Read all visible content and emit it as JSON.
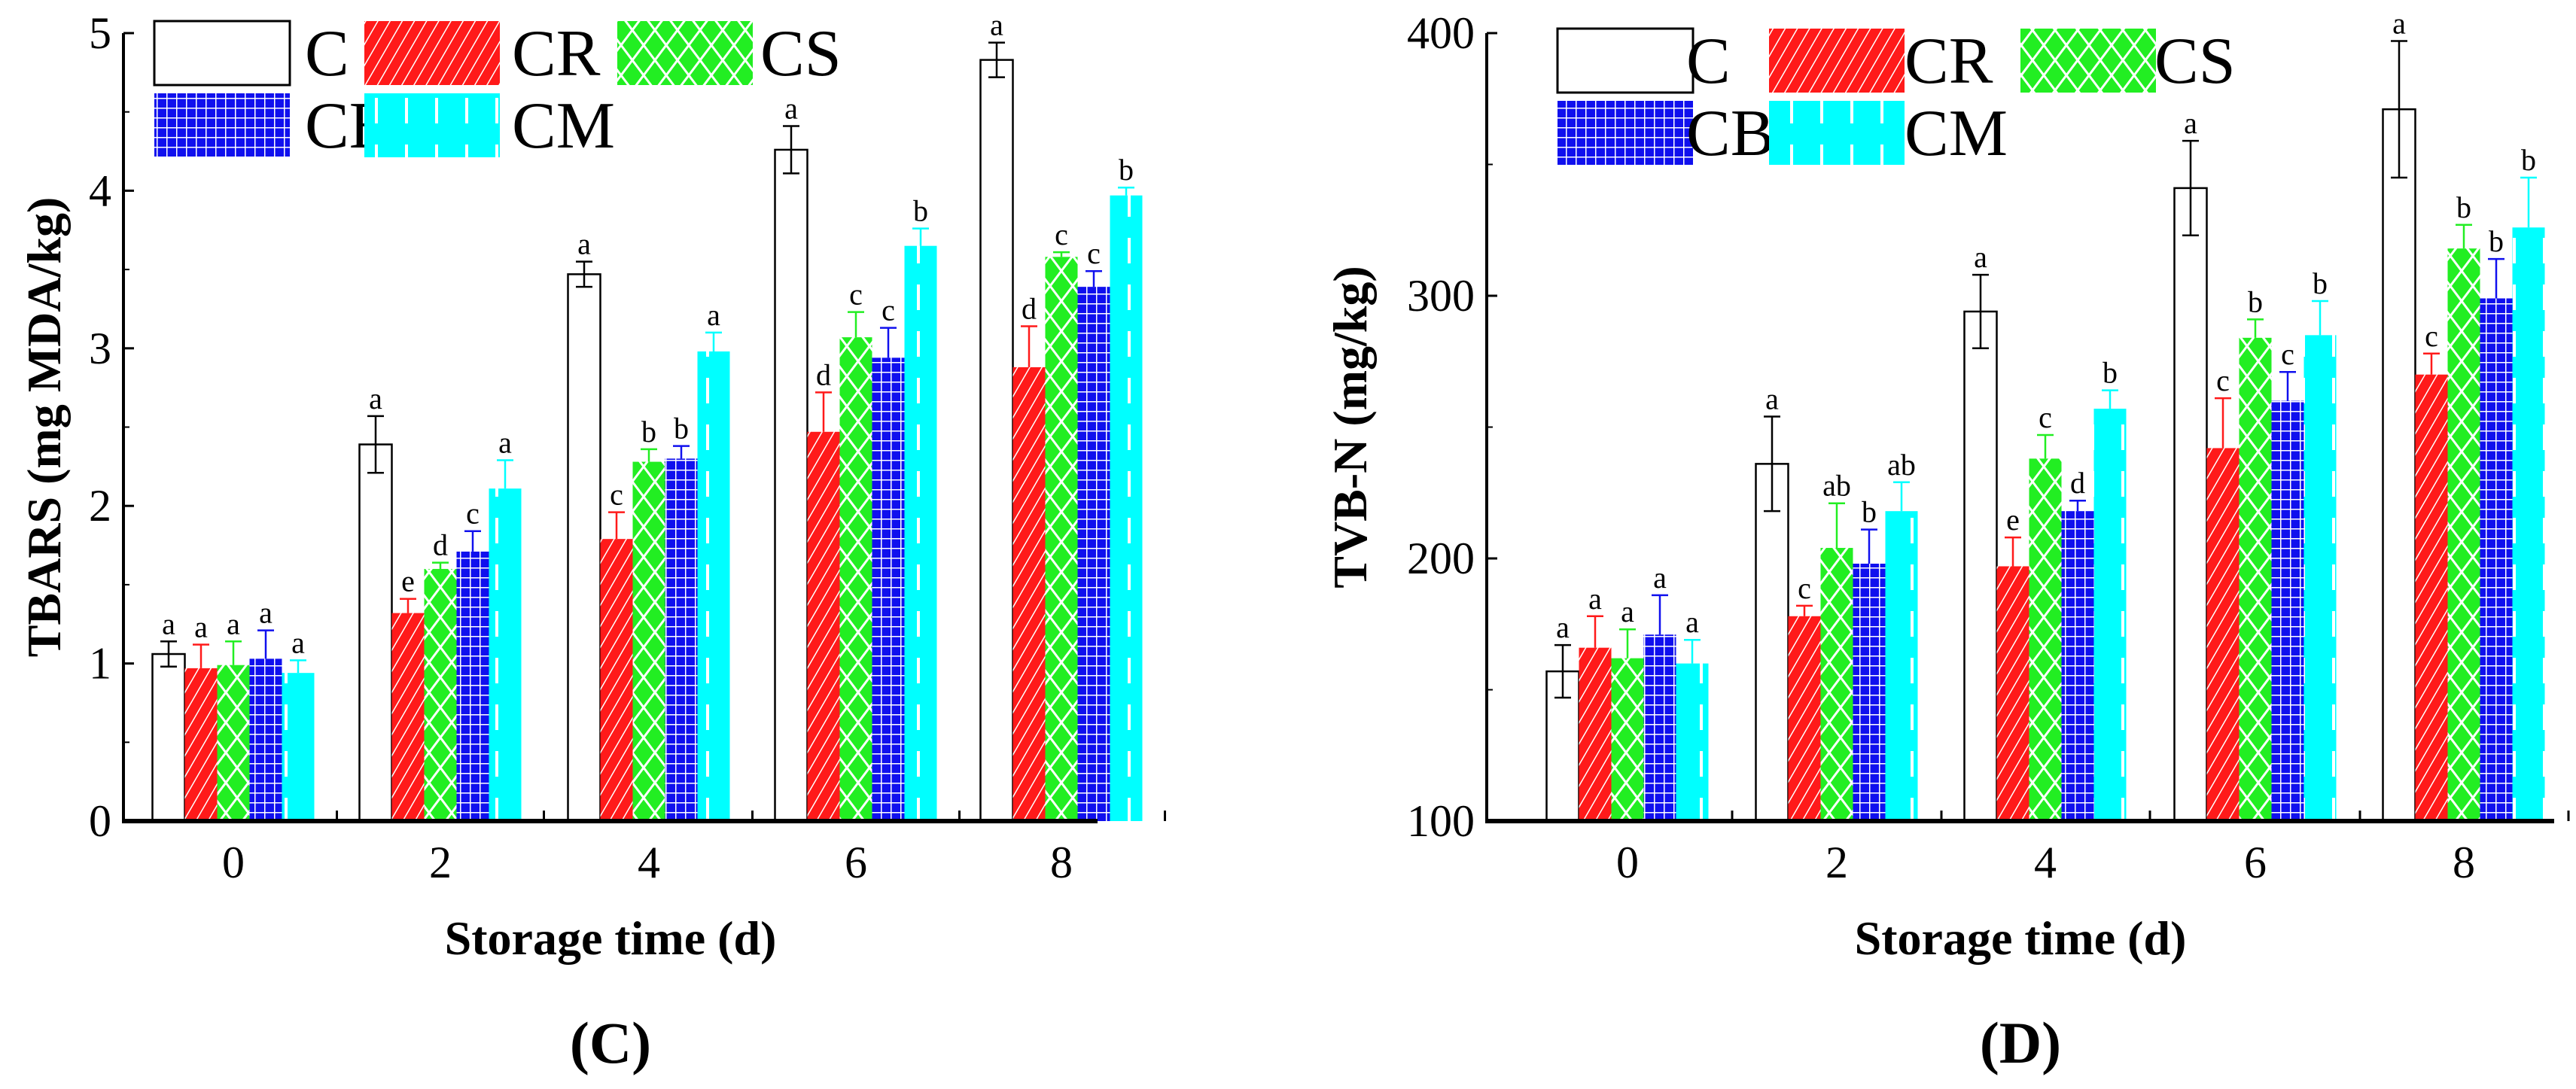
{
  "colors": {
    "C": "#ffffff",
    "CR": "#ff1a1a",
    "CS": "#22ee22",
    "CB": "#1010ee",
    "CM": "#00ffff",
    "axis": "#000000"
  },
  "chart_data": [
    {
      "type": "bar",
      "panel_label": "(C)",
      "xlabel": "Storage time (d)",
      "ylabel": "TBARS (mg MDA/kg)",
      "categories": [
        "0",
        "2",
        "4",
        "6",
        "8"
      ],
      "ylim": [
        0,
        5
      ],
      "yticks": [
        "0",
        "1",
        "2",
        "3",
        "4",
        "5"
      ],
      "grid": false,
      "legend": "top-left",
      "series": [
        {
          "name": "C",
          "pattern": "none",
          "values": [
            1.06,
            2.39,
            3.47,
            4.26,
            4.83
          ],
          "errors": [
            0.08,
            0.18,
            0.08,
            0.15,
            0.11
          ],
          "letters": [
            "a",
            "a",
            "a",
            "a",
            "a"
          ]
        },
        {
          "name": "CR",
          "pattern": "diagonal-stripes",
          "values": [
            0.97,
            1.32,
            1.79,
            2.47,
            2.88
          ],
          "errors": [
            0.15,
            0.09,
            0.17,
            0.25,
            0.26
          ],
          "letters": [
            "a",
            "e",
            "c",
            "d",
            "d"
          ]
        },
        {
          "name": "CS",
          "pattern": "crosshatch-diamond",
          "values": [
            0.99,
            1.6,
            2.28,
            3.07,
            3.58
          ],
          "errors": [
            0.15,
            0.04,
            0.08,
            0.16,
            0.03
          ],
          "letters": [
            "a",
            "d",
            "b",
            "c",
            "c"
          ]
        },
        {
          "name": "CB",
          "pattern": "grid",
          "values": [
            1.03,
            1.71,
            2.3,
            2.94,
            3.39
          ],
          "errors": [
            0.18,
            0.13,
            0.08,
            0.19,
            0.1
          ],
          "letters": [
            "a",
            "c",
            "b",
            "c",
            "c"
          ]
        },
        {
          "name": "CM",
          "pattern": "dashes",
          "values": [
            0.94,
            2.11,
            2.98,
            3.65,
            3.97
          ],
          "errors": [
            0.08,
            0.18,
            0.12,
            0.11,
            0.05
          ],
          "letters": [
            "a",
            "a",
            "a",
            "b",
            "b"
          ]
        }
      ]
    },
    {
      "type": "bar",
      "panel_label": "(D)",
      "xlabel": "Storage time (d)",
      "ylabel": "TVB-N (mg/kg)",
      "categories": [
        "0",
        "2",
        "4",
        "6",
        "8"
      ],
      "ylim": [
        100,
        400
      ],
      "yticks": [
        "100",
        "200",
        "300",
        "400"
      ],
      "grid": false,
      "legend": "top-left",
      "series": [
        {
          "name": "C",
          "pattern": "none",
          "values": [
            157,
            236,
            294,
            341,
            371
          ],
          "errors": [
            10,
            18,
            14,
            18,
            26
          ],
          "letters": [
            "a",
            "a",
            "a",
            "a",
            "a"
          ]
        },
        {
          "name": "CR",
          "pattern": "diagonal-stripes",
          "values": [
            166,
            178,
            197,
            242,
            270
          ],
          "errors": [
            12,
            4,
            11,
            19,
            8
          ],
          "letters": [
            "a",
            "c",
            "e",
            "c",
            "c"
          ]
        },
        {
          "name": "CS",
          "pattern": "crosshatch-diamond",
          "values": [
            162,
            204,
            238,
            284,
            318
          ],
          "errors": [
            11,
            17,
            9,
            7,
            9
          ],
          "letters": [
            "a",
            "ab",
            "c",
            "b",
            "b"
          ]
        },
        {
          "name": "CB",
          "pattern": "grid",
          "values": [
            171,
            198,
            218,
            260,
            299
          ],
          "errors": [
            15,
            13,
            4,
            11,
            15
          ],
          "letters": [
            "a",
            "b",
            "d",
            "c",
            "b"
          ]
        },
        {
          "name": "CM",
          "pattern": "dashes",
          "values": [
            160,
            218,
            257,
            285,
            326
          ],
          "errors": [
            9,
            11,
            7,
            13,
            19
          ],
          "letters": [
            "a",
            "ab",
            "b",
            "b",
            "b"
          ]
        }
      ]
    }
  ]
}
